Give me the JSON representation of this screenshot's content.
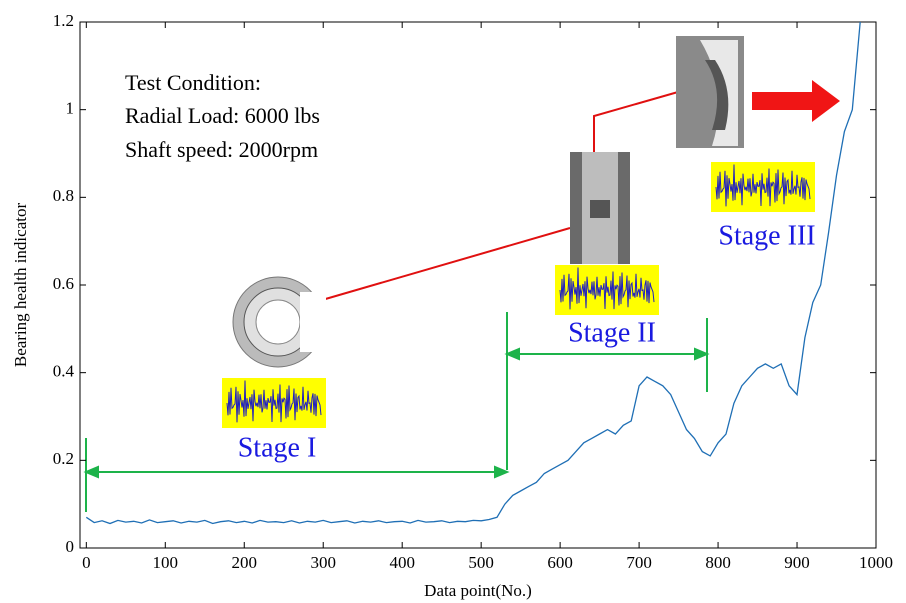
{
  "chart_data": {
    "type": "line",
    "xlabel": "Data point(No.)",
    "ylabel": "Bearing health indicator",
    "annotations": [
      "Test Condition:",
      "Radial Load: 6000 lbs",
      "Shaft speed: 2000rpm",
      "Stage I",
      "Stage II",
      "Stage III"
    ],
    "x": [
      0,
      10,
      20,
      30,
      40,
      50,
      60,
      70,
      80,
      90,
      100,
      110,
      120,
      130,
      140,
      150,
      160,
      170,
      180,
      190,
      200,
      210,
      220,
      230,
      240,
      250,
      260,
      270,
      280,
      290,
      300,
      310,
      320,
      330,
      340,
      350,
      360,
      370,
      380,
      390,
      400,
      410,
      420,
      430,
      440,
      450,
      460,
      470,
      480,
      490,
      500,
      510,
      520,
      530,
      540,
      550,
      560,
      570,
      580,
      590,
      600,
      610,
      620,
      630,
      640,
      650,
      660,
      670,
      680,
      690,
      700,
      710,
      720,
      730,
      740,
      750,
      760,
      770,
      780,
      790,
      800,
      810,
      820,
      830,
      840,
      850,
      860,
      870,
      880,
      890,
      900,
      910,
      920,
      930,
      940,
      950,
      960,
      970,
      980
    ],
    "series": [
      {
        "name": "Bearing health indicator",
        "color": "#1f6fb5",
        "values": [
          0.07,
          0.058,
          0.062,
          0.056,
          0.063,
          0.059,
          0.061,
          0.057,
          0.064,
          0.058,
          0.06,
          0.062,
          0.057,
          0.061,
          0.059,
          0.063,
          0.056,
          0.06,
          0.062,
          0.058,
          0.061,
          0.057,
          0.063,
          0.059,
          0.06,
          0.058,
          0.062,
          0.057,
          0.061,
          0.059,
          0.063,
          0.058,
          0.06,
          0.062,
          0.057,
          0.061,
          0.059,
          0.062,
          0.058,
          0.06,
          0.061,
          0.057,
          0.063,
          0.059,
          0.06,
          0.062,
          0.058,
          0.061,
          0.06,
          0.063,
          0.062,
          0.065,
          0.07,
          0.1,
          0.12,
          0.13,
          0.14,
          0.15,
          0.17,
          0.18,
          0.19,
          0.2,
          0.22,
          0.24,
          0.25,
          0.26,
          0.27,
          0.26,
          0.28,
          0.29,
          0.37,
          0.39,
          0.38,
          0.37,
          0.35,
          0.31,
          0.27,
          0.25,
          0.22,
          0.21,
          0.24,
          0.26,
          0.33,
          0.37,
          0.39,
          0.41,
          0.42,
          0.41,
          0.42,
          0.37,
          0.35,
          0.48,
          0.56,
          0.6,
          0.72,
          0.85,
          0.95,
          1.0,
          1.2
        ]
      }
    ],
    "xlim": [
      -8,
      1000
    ],
    "xticks": [
      0,
      100,
      200,
      300,
      400,
      500,
      600,
      700,
      800,
      900,
      1000
    ],
    "ylim": [
      0,
      1.2
    ],
    "yticks": [
      0,
      0.2,
      0.4,
      0.6,
      0.8,
      1,
      1.2
    ]
  }
}
